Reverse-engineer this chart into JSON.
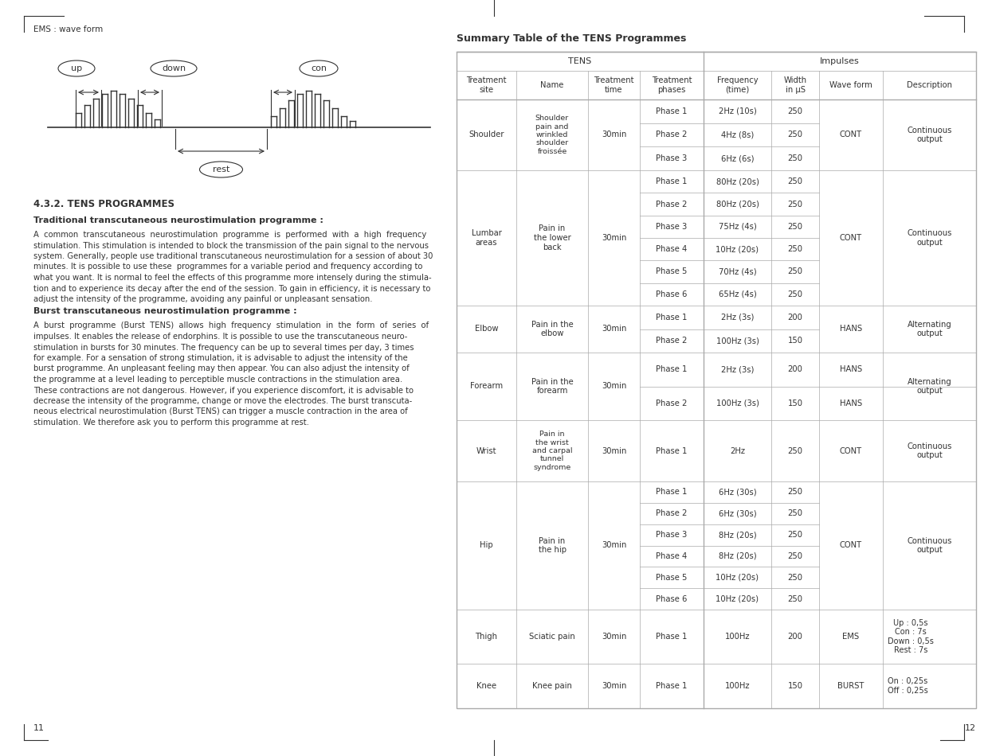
{
  "page_header_left": "EMS : wave form",
  "page_number_left": "11",
  "page_number_right": "12",
  "section_title": "4.3.2. TENS PROGRAMMES",
  "subsection1_title": "Traditional transcutaneous neurostimulation programme :",
  "subsection1_text": "A common  transcutaneous  neurostimulation  programme  is  performed  with  a  high  frequency stimulation. This stimulation is intended to block the transmission of the pain signal to the nervous system. Generally, people use traditional transcutaneous neurostimulation for a session of about 30 minutes. It is possible to use these programmes for a variable period and frequency according to what you want. It is normal to feel the effects of this programme more intensely during the stimula-tion and to experience its decay after the end of the session. To gain in efficiency, it is necessary to adjust the intensity of the programme, avoiding any painful or unpleasant sensation.",
  "subsection2_title": "Burst transcutaneous neurostimulation programme :",
  "subsection2_text": "A  burst  programme  (Burst  TENS)  allows  high  frequency  stimulation  in  the  form  of  series  of impulses. It enables the release of endorphins. It is possible to use the transcutaneous neuro-stimulation in bursts for 30 minutes. The frequency can be up to several times per day, 3 times for example. For a sensation of strong stimulation, it is advisable to adjust the intensity of the burst programme. An unpleasant feeling may then appear. You can also adjust the intensity of the programme at a level leading to perceptible muscle contractions in the stimulation area. These contractions are not dangerous. However, if you experience discomfort, it is advisable to decrease the intensity of the programme, change or move the electrodes. The burst transcuta-neous electrical neurostimulation (Burst TENS) can trigger a muscle contraction in the area of stimulation. We therefore ask you to perform this programme at rest.",
  "table_title": "Summary Table of the TENS Programmes",
  "bg_color": "#ffffff",
  "text_color": "#333333",
  "gray_text": "#555555",
  "table_border_color": "#aaaaaa"
}
